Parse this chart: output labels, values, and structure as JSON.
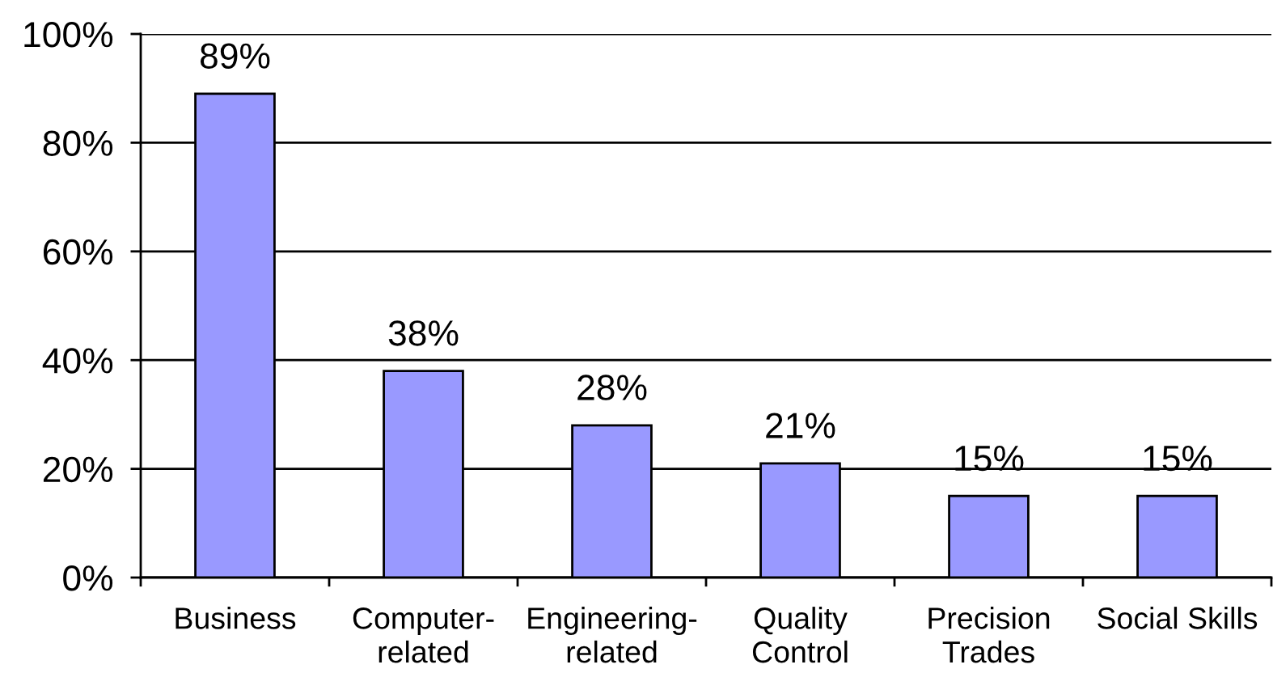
{
  "chart_data": {
    "type": "bar",
    "categories": [
      "Business",
      "Computer-\nrelated",
      "Engineering-\nrelated",
      "Quality\nControl",
      "Precision\nTrades",
      "Social Skills"
    ],
    "values": [
      89,
      38,
      28,
      21,
      15,
      15
    ],
    "color": "#9999ff",
    "value_labels": [
      "89%",
      "38%",
      "28%",
      "21%",
      "15%",
      "15%"
    ],
    "ylim": [
      0,
      100
    ],
    "yticks": [
      {
        "value": 0,
        "label": "0%"
      },
      {
        "value": 20,
        "label": "20%"
      },
      {
        "value": 40,
        "label": "40%"
      },
      {
        "value": 60,
        "label": "60%"
      },
      {
        "value": 80,
        "label": "80%"
      },
      {
        "value": 100,
        "label": "100%"
      }
    ],
    "grid": "y"
  }
}
